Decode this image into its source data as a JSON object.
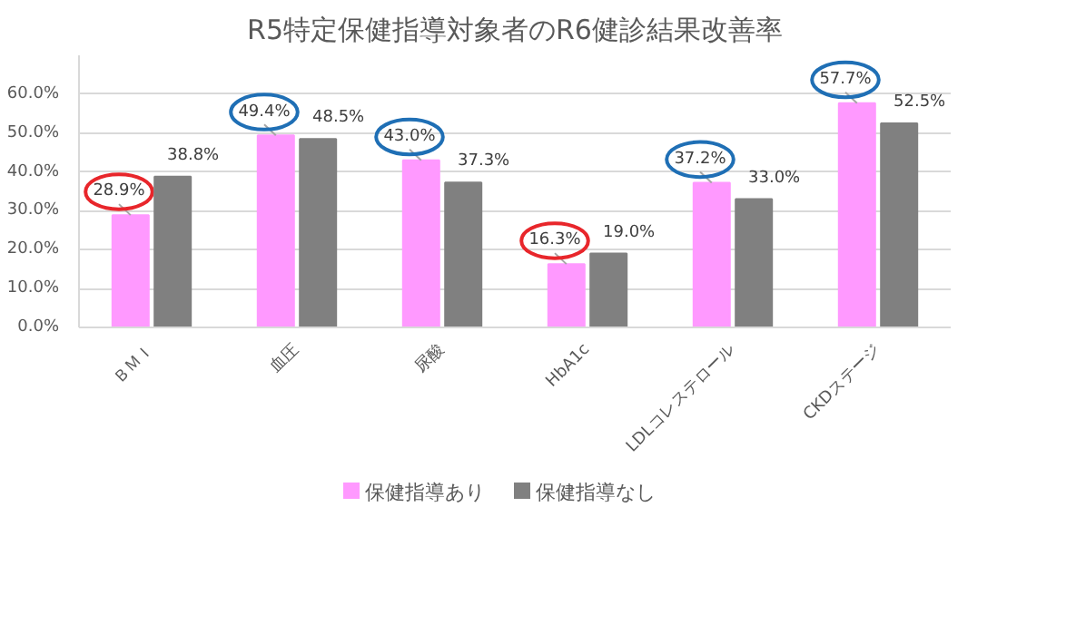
{
  "chart_data": {
    "type": "bar",
    "title": "R5特定保健指導対象者のR6健診結果改善率",
    "categories": [
      "ＢＭＩ",
      "血圧",
      "尿酸",
      "HbA1c",
      "LDLコレステロール",
      "CKDステージ"
    ],
    "series": [
      {
        "name": "保健指導あり",
        "color": "#ff99ff",
        "values": [
          28.9,
          49.4,
          43.0,
          16.3,
          37.2,
          57.7
        ],
        "value_labels": [
          "28.9%",
          "49.4%",
          "43.0%",
          "16.3%",
          "37.2%",
          "57.7%"
        ]
      },
      {
        "name": "保健指導なし",
        "color": "#808080",
        "values": [
          38.8,
          48.5,
          37.3,
          19.0,
          33.0,
          52.5
        ],
        "value_labels": [
          "38.8%",
          "48.5%",
          "37.3%",
          "19.0%",
          "33.0%",
          "52.5%"
        ]
      }
    ],
    "ylim": [
      0,
      70
    ],
    "yticks": [
      {
        "value": 0,
        "label": "0.0%"
      },
      {
        "value": 10,
        "label": "10.0%"
      },
      {
        "value": 20,
        "label": "20.0%"
      },
      {
        "value": 30,
        "label": "30.0%"
      },
      {
        "value": 40,
        "label": "40.0%"
      },
      {
        "value": 50,
        "label": "50.0%"
      },
      {
        "value": 60,
        "label": "60.0%"
      }
    ],
    "grid": "y",
    "legend": "bottom"
  }
}
